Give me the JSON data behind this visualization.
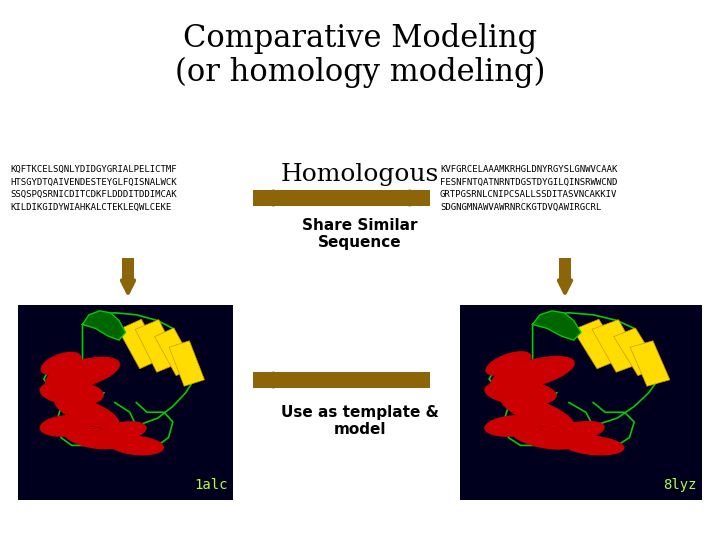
{
  "title_line1": "Comparative Modeling",
  "title_line2": "(or homology modeling)",
  "title_fontsize": 22,
  "bg_color": "#ffffff",
  "left_sequence": "KQFTKCELSQNLYDIDGYGRIALPELICTMF\nHTSGYDTQAIVENDESTEYGLFQISNALWCK\nSSQSPQSRNICDITCDKFLDDDITDDIMCAK\nKILDIKGIDYWIAHKALCTEKLEQWLCEKE",
  "right_sequence": "KVFGRCELAAAMKRHGLDNYRGYSLGNWVCAAK\nFESNFNTQATNRNTDGSTDYGILQINSRWWCND\nGRTPGSRNLCNIPCSALLSSDITASVNCAKKIV\nSDGNGMNAWVAWRNRCKGTDVQAWIRGCRL",
  "homologous_label": "Homologous",
  "share_label": "Share Similar\nSequence",
  "template_label": "Use as template &\nmodel",
  "label_1alc": "1alc",
  "label_8lyz": "8lyz",
  "arrow_color": "#8B6508",
  "sequence_fontsize": 6.5,
  "label_fontsize": 11,
  "homologous_fontsize": 18,
  "box_bg": "#00001e"
}
